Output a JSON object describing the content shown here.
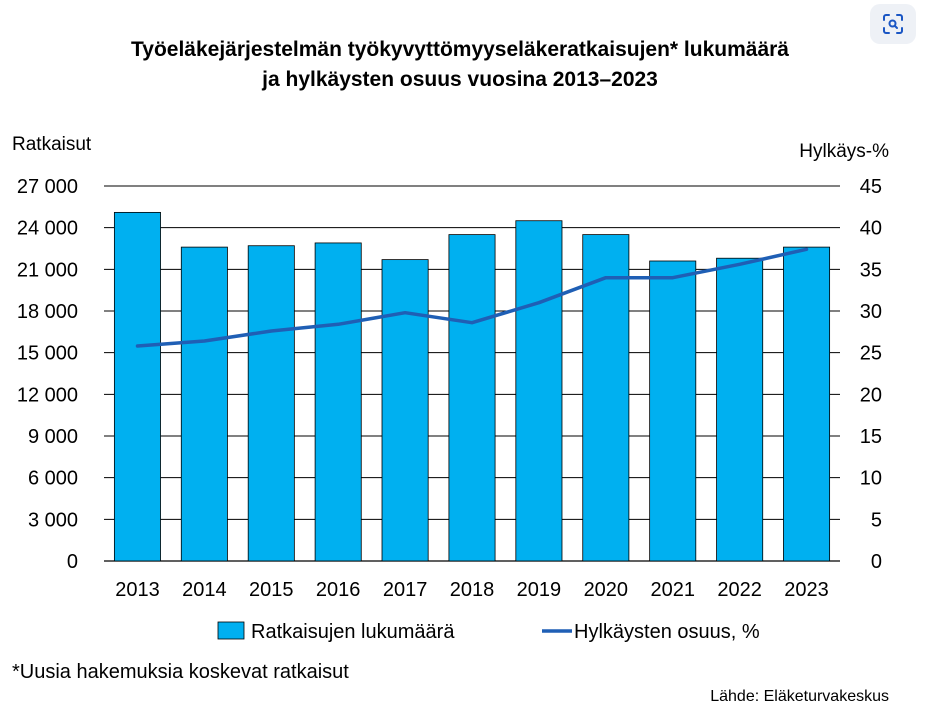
{
  "chart_data": {
    "type": "bar",
    "title_line1": "Työeläkejärjestelmän työkyvyttömyyseläkeratkaisujen* lukumäärä",
    "title_line2": "ja hylkäysten osuus vuosina 2013–2023",
    "categories": [
      "2013",
      "2014",
      "2015",
      "2016",
      "2017",
      "2018",
      "2019",
      "2020",
      "2021",
      "2022",
      "2023"
    ],
    "y_left": {
      "label": "Ratkaisut",
      "ticks": [
        "0",
        "3 000",
        "6 000",
        "9 000",
        "12 000",
        "15 000",
        "18 000",
        "21 000",
        "24 000",
        "27 000"
      ],
      "tick_values": [
        0,
        3000,
        6000,
        9000,
        12000,
        15000,
        18000,
        21000,
        24000,
        27000
      ],
      "range": [
        0,
        27000
      ]
    },
    "y_right": {
      "label": "Hylkäys-%",
      "ticks": [
        "0",
        "5",
        "10",
        "15",
        "20",
        "25",
        "30",
        "35",
        "40",
        "45"
      ],
      "tick_values": [
        0,
        5,
        10,
        15,
        20,
        25,
        30,
        35,
        40,
        45
      ],
      "range": [
        0,
        45
      ]
    },
    "series": [
      {
        "name": "Ratkaisujen lukumäärä",
        "type": "bar",
        "axis": "left",
        "color": "#00B0F0",
        "values": [
          25100,
          22600,
          22700,
          22900,
          21700,
          23500,
          24500,
          23500,
          21600,
          21800,
          22600
        ]
      },
      {
        "name": "Hylkäysten osuus, %",
        "type": "line",
        "axis": "right",
        "color": "#1F5FB5",
        "values": [
          25.8,
          26.4,
          27.6,
          28.4,
          29.8,
          28.6,
          31.0,
          34.0,
          34.0,
          35.6,
          37.4
        ]
      }
    ],
    "grid": "horizontal"
  },
  "footnote": "*Uusia hakemuksia koskevat ratkaisut",
  "source": "Lähde: Eläketurvakeskus",
  "icons": {
    "lens": "lens-search-icon"
  }
}
